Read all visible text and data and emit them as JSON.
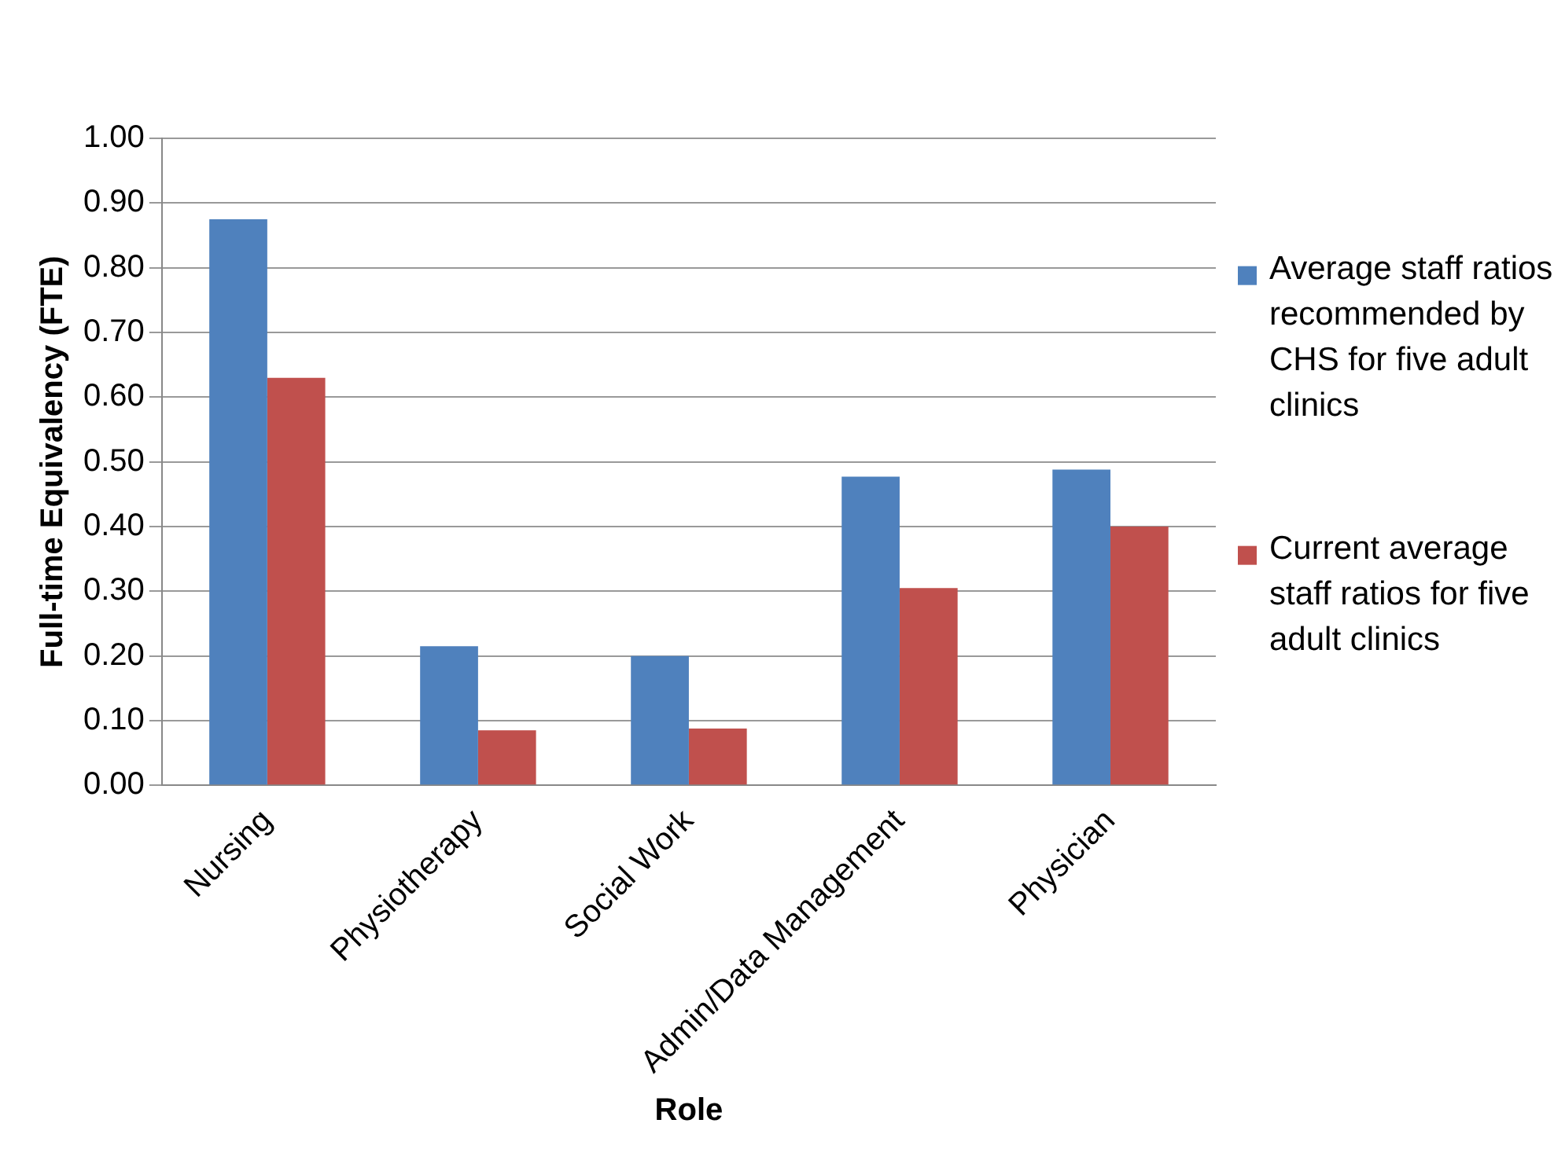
{
  "chart_data": {
    "type": "bar",
    "xlabel": "Role",
    "ylabel": "Full-time Equivalency (FTE)",
    "categories": [
      "Nursing",
      "Physiotherapy",
      "Social Work",
      "Admin/Data Management",
      "Physician"
    ],
    "series": [
      {
        "name": "Average staff ratios recommended by CHS for five adult clinics",
        "color": "#4f81bd",
        "values": [
          0.875,
          0.215,
          0.2,
          0.477,
          0.488
        ]
      },
      {
        "name": "Current average staff ratios for five adult clinics",
        "color": "#c0504d",
        "values": [
          0.63,
          0.085,
          0.088,
          0.305,
          0.4
        ]
      }
    ],
    "ylim": [
      0,
      1
    ],
    "yticks": [
      {
        "value": 0,
        "label": "0.00"
      },
      {
        "value": 0.1,
        "label": "0.10"
      },
      {
        "value": 0.2,
        "label": "0.20"
      },
      {
        "value": 0.3,
        "label": "0.30"
      },
      {
        "value": 0.4,
        "label": "0.40"
      },
      {
        "value": 0.5,
        "label": "0.50"
      },
      {
        "value": 0.6,
        "label": "0.60"
      },
      {
        "value": 0.7,
        "label": "0.70"
      },
      {
        "value": 0.8,
        "label": "0.80"
      },
      {
        "value": 0.9,
        "label": "0.90"
      },
      {
        "value": 1,
        "label": "1.00"
      }
    ],
    "grid": "y",
    "legend": "right"
  }
}
